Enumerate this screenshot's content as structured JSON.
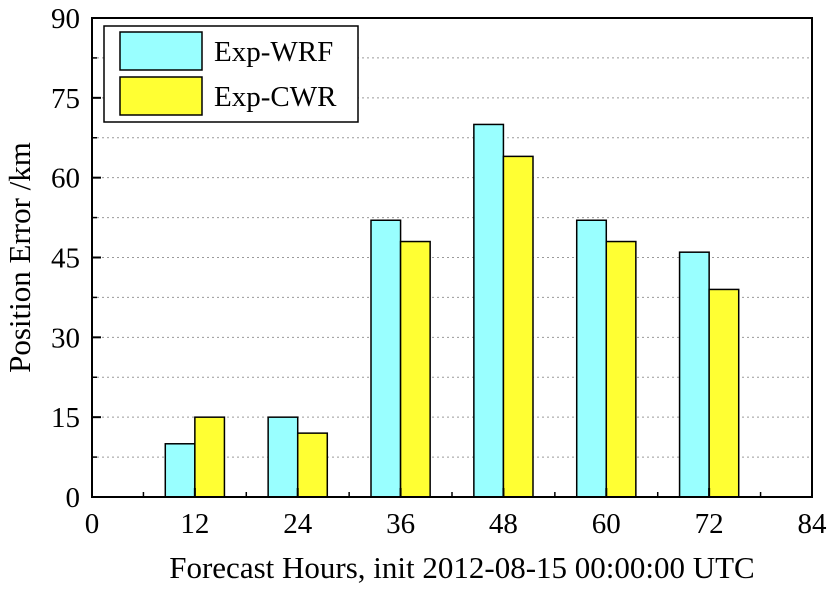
{
  "chart_data": {
    "type": "bar",
    "x": [
      12,
      24,
      36,
      48,
      60,
      72
    ],
    "series": [
      {
        "name": "Exp-WRF",
        "values": [
          10,
          15,
          52,
          70,
          52,
          46
        ],
        "color": "#99FFFF"
      },
      {
        "name": "Exp-CWR",
        "values": [
          15,
          12,
          48,
          64,
          48,
          39
        ],
        "color": "#FFFF33"
      }
    ],
    "xlabel": "Forecast Hours, init 2012-08-15 00:00:00 UTC",
    "ylabel": "Position Error /km",
    "xlim": [
      0,
      84
    ],
    "ylim": [
      0,
      90
    ],
    "xticks": [
      0,
      12,
      24,
      36,
      48,
      60,
      72,
      84
    ],
    "yticks": [
      0,
      15,
      30,
      45,
      60,
      75,
      90
    ],
    "grid": "horizontal dotted",
    "legend_position": "top-left"
  }
}
